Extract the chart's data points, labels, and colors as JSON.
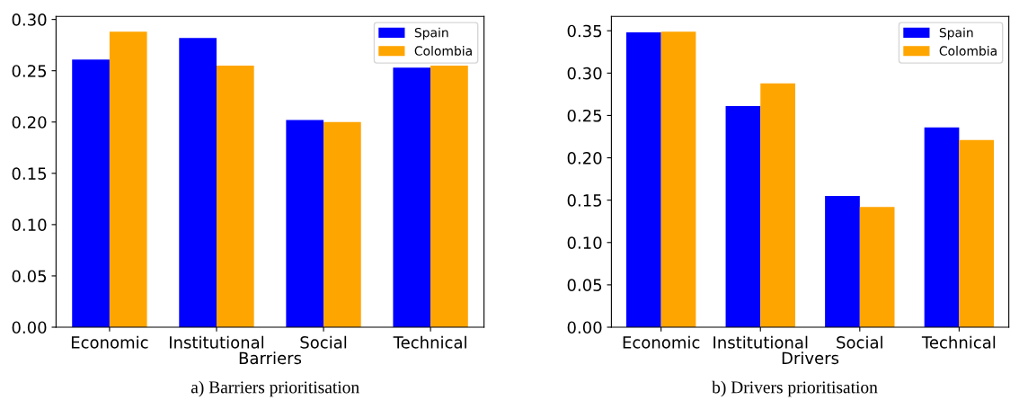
{
  "chart_data": [
    {
      "type": "bar",
      "xlabel": "Barriers",
      "categories": [
        "Economic",
        "Institutional",
        "Social",
        "Technical"
      ],
      "series": [
        {
          "name": "Spain",
          "color": "#0000ff",
          "values": [
            0.261,
            0.282,
            0.202,
            0.253
          ]
        },
        {
          "name": "Colombia",
          "color": "#ffa500",
          "values": [
            0.288,
            0.255,
            0.2,
            0.255
          ]
        }
      ],
      "ylim": [
        0,
        0.303
      ],
      "yticks": [
        {
          "value": 0,
          "label": "0.00"
        },
        {
          "value": 0.05,
          "label": "0.05"
        },
        {
          "value": 0.1,
          "label": "0.10"
        },
        {
          "value": 0.15,
          "label": "0.15"
        },
        {
          "value": 0.2,
          "label": "0.20"
        },
        {
          "value": 0.25,
          "label": "0.25"
        },
        {
          "value": 0.3,
          "label": "0.30"
        }
      ],
      "grid": false,
      "legend": "top right",
      "annotations": [
        "a) Barriers prioritisation"
      ]
    },
    {
      "type": "bar",
      "xlabel": "Drivers",
      "categories": [
        "Economic",
        "Institutional",
        "Social",
        "Technical"
      ],
      "series": [
        {
          "name": "Spain",
          "color": "#0000ff",
          "values": [
            0.348,
            0.261,
            0.155,
            0.236
          ]
        },
        {
          "name": "Colombia",
          "color": "#ffa500",
          "values": [
            0.349,
            0.288,
            0.142,
            0.221
          ]
        }
      ],
      "ylim": [
        0,
        0.367
      ],
      "yticks": [
        {
          "value": 0,
          "label": "0.00"
        },
        {
          "value": 0.05,
          "label": "0.05"
        },
        {
          "value": 0.1,
          "label": "0.10"
        },
        {
          "value": 0.15,
          "label": "0.15"
        },
        {
          "value": 0.2,
          "label": "0.20"
        },
        {
          "value": 0.25,
          "label": "0.25"
        },
        {
          "value": 0.3,
          "label": "0.30"
        },
        {
          "value": 0.35,
          "label": "0.35"
        }
      ],
      "grid": false,
      "legend": "top right",
      "annotations": [
        "b) Drivers prioritisation"
      ]
    }
  ]
}
